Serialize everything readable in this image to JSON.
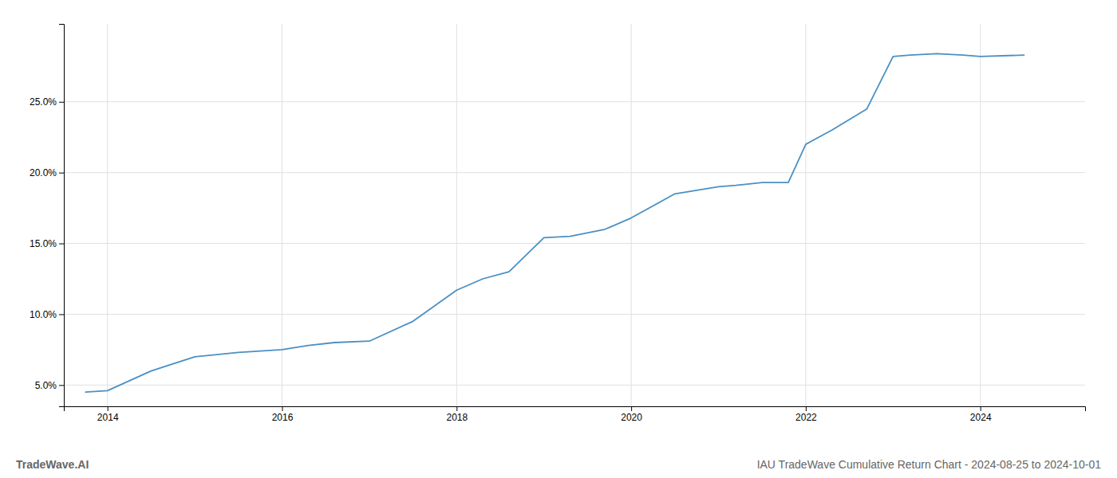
{
  "chart_data": {
    "type": "line",
    "title": "IAU TradeWave Cumulative Return Chart - 2024-08-25 to 2024-10-01",
    "annotations": [
      "TradeWave.AI"
    ],
    "x": [
      2013.75,
      2014.0,
      2014.5,
      2015.0,
      2015.5,
      2016.0,
      2016.3,
      2016.6,
      2017.0,
      2017.5,
      2018.0,
      2018.3,
      2018.6,
      2019.0,
      2019.3,
      2019.7,
      2020.0,
      2020.5,
      2021.0,
      2021.2,
      2021.5,
      2021.8,
      2022.0,
      2022.3,
      2022.7,
      2023.0,
      2023.2,
      2023.5,
      2023.8,
      2024.0,
      2024.5
    ],
    "values": [
      4.5,
      4.6,
      6.0,
      7.0,
      7.3,
      7.5,
      7.8,
      8.0,
      8.1,
      9.5,
      11.7,
      12.5,
      13.0,
      15.4,
      15.5,
      16.0,
      16.8,
      18.5,
      19.0,
      19.1,
      19.3,
      19.3,
      22.0,
      23.0,
      24.5,
      28.2,
      28.3,
      28.4,
      28.3,
      28.2,
      28.3
    ],
    "color": "#4a90c4",
    "xlim": [
      2013.5,
      2025.2
    ],
    "ylim": [
      3.5,
      30.5
    ],
    "xticks": [
      2014,
      2016,
      2018,
      2020,
      2022,
      2024
    ],
    "yticks": [
      {
        "value": 5.0,
        "label": "5.0%"
      },
      {
        "value": 10.0,
        "label": "10.0%"
      },
      {
        "value": 15.0,
        "label": "15.0%"
      },
      {
        "value": 20.0,
        "label": "20.0%"
      },
      {
        "value": 25.0,
        "label": "25.0%"
      }
    ],
    "grid": true
  }
}
